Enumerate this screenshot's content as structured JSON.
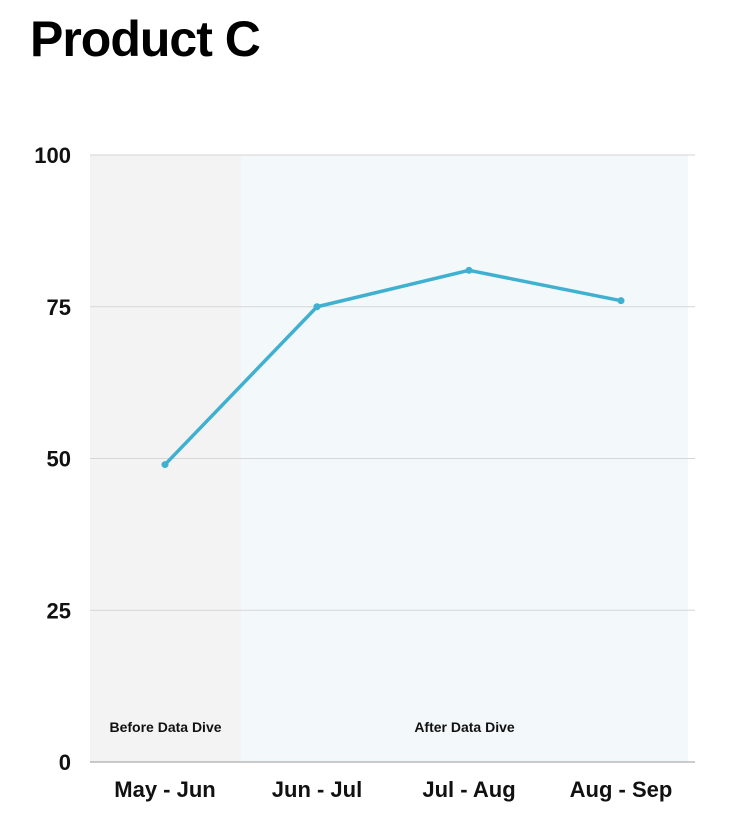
{
  "chart_data": {
    "type": "line",
    "title": "Product C",
    "xlabel": "",
    "ylabel": "",
    "categories": [
      "May - Jun",
      "Jun - Jul",
      "Jul - Aug",
      "Aug - Sep"
    ],
    "series": [
      {
        "values": [
          49,
          75,
          81,
          76
        ],
        "color": "#3fb0cf"
      }
    ],
    "ylim": [
      0,
      100
    ],
    "yticks": [
      0,
      25,
      50,
      75,
      100
    ],
    "ytick_labels": [
      "0",
      "25",
      "50",
      "75",
      "100"
    ],
    "grid": true,
    "grid_color": "#d6d6d6",
    "legend": false,
    "bands": [
      {
        "label": "Before Data Dive",
        "from_category": "May - Jun",
        "to_category": "May - Jun",
        "color": "#f3f3f3"
      },
      {
        "label": "After Data Dive",
        "from_category": "Jun - Jul",
        "to_category": "Aug - Sep",
        "color": "#f3f8fa"
      }
    ]
  }
}
